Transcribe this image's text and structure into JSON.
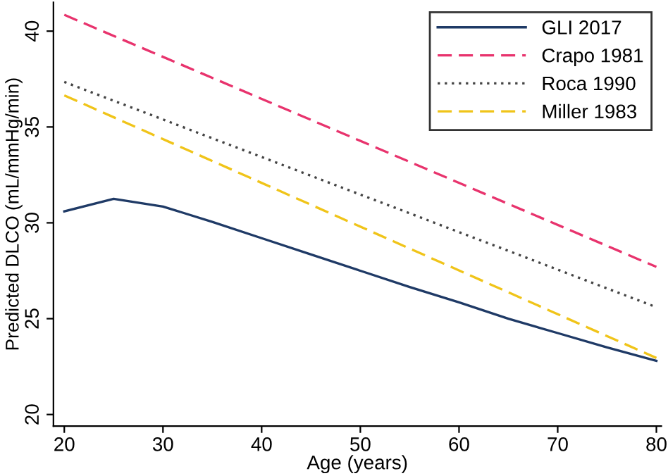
{
  "chart_data": {
    "type": "line",
    "xlabel": "Age (years)",
    "ylabel": "Predicted DLCO (mL/mmHg/min)",
    "xlim": [
      18.9,
      80.5
    ],
    "ylim": [
      19.4,
      41.5
    ],
    "xticks": [
      20,
      30,
      40,
      50,
      60,
      70,
      80
    ],
    "yticks": [
      20,
      25,
      30,
      35,
      40
    ],
    "grid": false,
    "legend": "top right",
    "marker": "none",
    "series": [
      {
        "name": "GLI 2017",
        "color": "#1f3a66",
        "line_style": "solid",
        "x": [
          20,
          25,
          30,
          35,
          40,
          45,
          50,
          55,
          60,
          65,
          70,
          75,
          80
        ],
        "values": [
          30.6,
          31.25,
          30.85,
          30.05,
          29.2,
          28.35,
          27.5,
          26.65,
          25.85,
          25.0,
          24.25,
          23.5,
          22.8
        ]
      },
      {
        "name": "Crapo 1981",
        "color": "#e8336d",
        "line_style": "dashed",
        "x": [
          20,
          80
        ],
        "values": [
          40.85,
          27.7
        ]
      },
      {
        "name": "Roca 1990",
        "color": "#444444",
        "line_style": "dotted",
        "x": [
          20,
          80
        ],
        "values": [
          37.35,
          25.6
        ]
      },
      {
        "name": "Miller 1983",
        "color": "#f0c419",
        "line_style": "dashed",
        "x": [
          20,
          80
        ],
        "values": [
          36.65,
          22.95
        ]
      }
    ]
  }
}
